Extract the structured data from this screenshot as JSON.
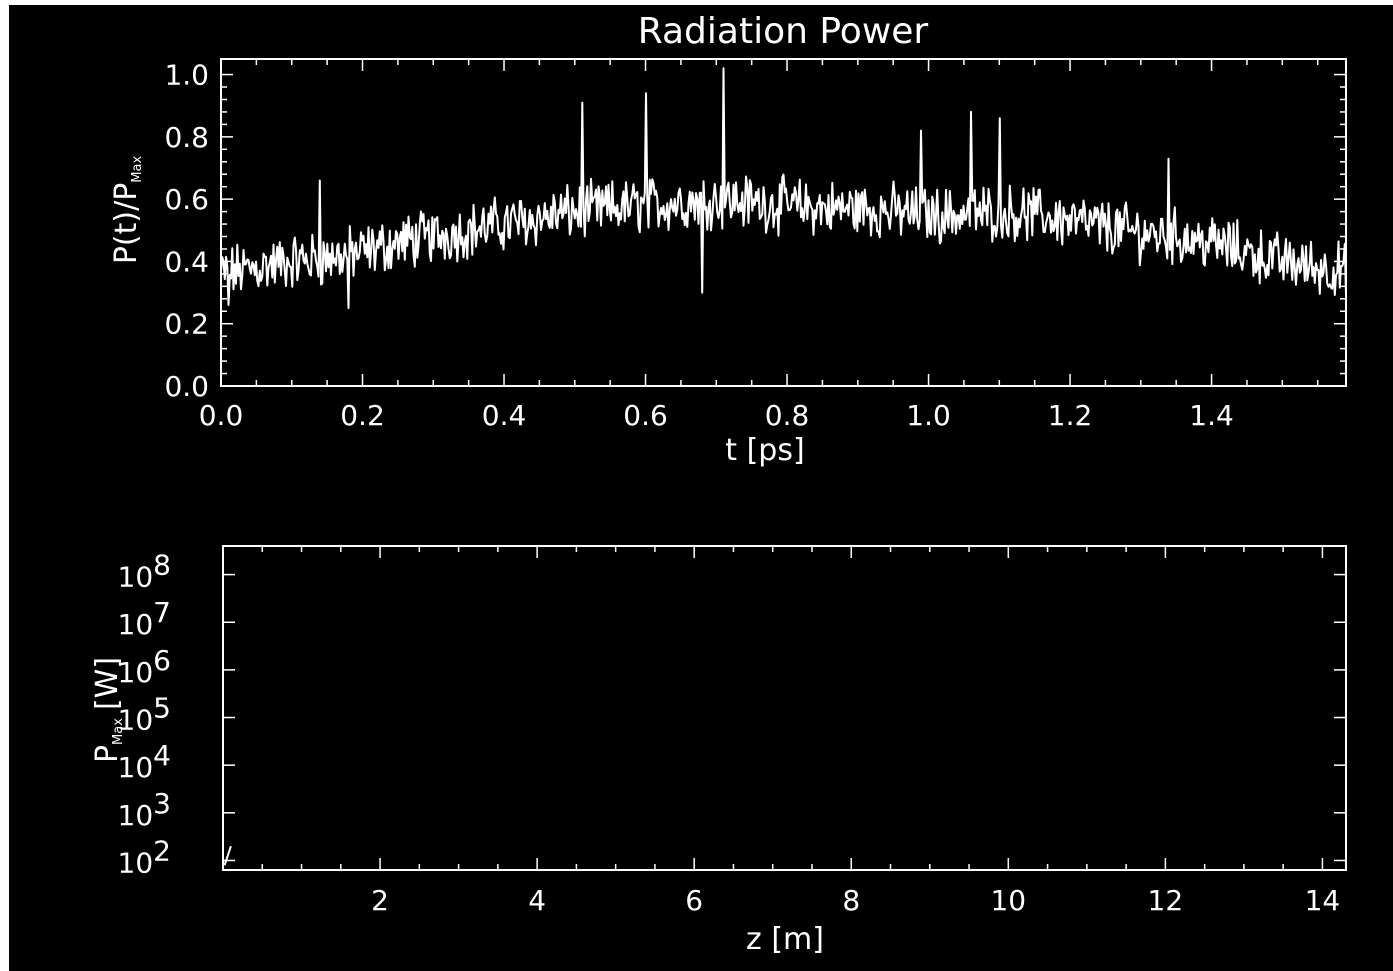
{
  "colors": {
    "background": "#000000",
    "foreground": "#ffffff",
    "page": "#ffffff"
  },
  "chart_data": [
    {
      "type": "line",
      "title": "Radiation Power",
      "xlabel": "t [ps]",
      "ylabel": {
        "main": "P(t)/P",
        "sub": "Max"
      },
      "xlim": [
        0.0,
        1.59
      ],
      "ylim": [
        0.0,
        1.05
      ],
      "xticks": [
        "0.0",
        "0.2",
        "0.4",
        "0.6",
        "0.8",
        "1.0",
        "1.2",
        "1.4"
      ],
      "yticks": [
        "0.0",
        "0.2",
        "0.4",
        "0.6",
        "0.8",
        "1.0"
      ],
      "grid": false,
      "noise_amplitude": 0.07,
      "envelope": {
        "t": [
          0.0,
          0.05,
          0.1,
          0.15,
          0.2,
          0.25,
          0.3,
          0.35,
          0.4,
          0.45,
          0.5,
          0.55,
          0.6,
          0.65,
          0.7,
          0.75,
          0.8,
          0.85,
          0.9,
          0.95,
          1.0,
          1.05,
          1.1,
          1.15,
          1.2,
          1.25,
          1.3,
          1.35,
          1.4,
          1.45,
          1.5,
          1.55,
          1.59
        ],
        "p": [
          0.36,
          0.38,
          0.4,
          0.41,
          0.43,
          0.46,
          0.48,
          0.5,
          0.52,
          0.54,
          0.56,
          0.57,
          0.58,
          0.59,
          0.6,
          0.59,
          0.58,
          0.57,
          0.57,
          0.56,
          0.55,
          0.55,
          0.56,
          0.55,
          0.53,
          0.51,
          0.49,
          0.48,
          0.46,
          0.43,
          0.4,
          0.38,
          0.37
        ]
      },
      "peaks": [
        {
          "t": 0.14,
          "p": 0.66
        },
        {
          "t": 0.51,
          "p": 0.91
        },
        {
          "t": 0.6,
          "p": 0.94
        },
        {
          "t": 0.71,
          "p": 1.02
        },
        {
          "t": 0.99,
          "p": 0.82
        },
        {
          "t": 1.06,
          "p": 0.88
        },
        {
          "t": 1.1,
          "p": 0.86
        },
        {
          "t": 1.34,
          "p": 0.73
        },
        {
          "t": 1.59,
          "p": 0.53
        }
      ],
      "dips": [
        {
          "t": 0.01,
          "p": 0.26
        },
        {
          "t": 0.18,
          "p": 0.25
        },
        {
          "t": 0.68,
          "p": 0.3
        },
        {
          "t": 1.59,
          "p": 0.29
        }
      ]
    },
    {
      "type": "line",
      "scale": "log",
      "xlabel": "z [m]",
      "ylabel": {
        "main": "P",
        "sub": "Max",
        "unit": "[W]"
      },
      "xlim": [
        0.0,
        14.3
      ],
      "ylim_exponent": [
        1.8,
        8.6
      ],
      "xticks": [
        "2",
        "4",
        "6",
        "8",
        "10",
        "12",
        "14"
      ],
      "yticks": [
        {
          "base": "10",
          "exp": "2"
        },
        {
          "base": "10",
          "exp": "3"
        },
        {
          "base": "10",
          "exp": "4"
        },
        {
          "base": "10",
          "exp": "5"
        },
        {
          "base": "10",
          "exp": "6"
        },
        {
          "base": "10",
          "exp": "7"
        },
        {
          "base": "10",
          "exp": "8"
        }
      ],
      "grid": false,
      "series": [
        {
          "z": [
            0.02,
            0.1
          ],
          "exponent": [
            1.9,
            2.3
          ]
        }
      ]
    }
  ]
}
